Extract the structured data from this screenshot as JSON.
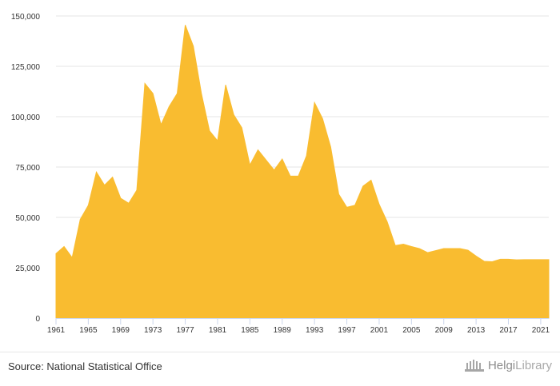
{
  "chart_data": {
    "type": "area",
    "title": "",
    "xlabel": "",
    "ylabel": "",
    "color": "#f9bc30",
    "grid": true,
    "ylim": [
      0,
      150000
    ],
    "yticks": [
      0,
      25000,
      50000,
      75000,
      100000,
      125000,
      150000
    ],
    "ytick_labels": [
      "0",
      "25,000",
      "50,000",
      "75,000",
      "100,000",
      "125,000",
      "150,000"
    ],
    "xtick_labels": [
      "1961",
      "1965",
      "1969",
      "1973",
      "1977",
      "1981",
      "1985",
      "1989",
      "1993",
      "1997",
      "2001",
      "2005",
      "2009",
      "2013",
      "2017",
      "2021"
    ],
    "x": [
      1961,
      1962,
      1963,
      1964,
      1965,
      1966,
      1967,
      1968,
      1969,
      1970,
      1971,
      1972,
      1973,
      1974,
      1975,
      1976,
      1977,
      1978,
      1979,
      1980,
      1981,
      1982,
      1983,
      1984,
      1985,
      1986,
      1987,
      1988,
      1989,
      1990,
      1991,
      1992,
      1993,
      1994,
      1995,
      1996,
      1997,
      1998,
      1999,
      2000,
      2001,
      2002,
      2003,
      2004,
      2005,
      2006,
      2007,
      2008,
      2009,
      2010,
      2011,
      2012,
      2013,
      2014,
      2015,
      2016,
      2017,
      2018,
      2019,
      2020,
      2021,
      2022
    ],
    "values": [
      32000,
      35500,
      30000,
      49000,
      56000,
      72500,
      66000,
      70000,
      59500,
      57000,
      63500,
      116500,
      111500,
      96000,
      105000,
      111500,
      145500,
      135000,
      111500,
      93000,
      88000,
      115800,
      101000,
      94500,
      76000,
      83500,
      78500,
      73500,
      79000,
      70500,
      70500,
      80500,
      107000,
      99000,
      85000,
      61500,
      55000,
      56000,
      65500,
      68500,
      56500,
      47800,
      36000,
      36700,
      35500,
      34500,
      32500,
      33500,
      34500,
      34500,
      34500,
      33700,
      30800,
      28200,
      28000,
      29200,
      29200,
      28900,
      29000,
      29000,
      29000,
      29000
    ]
  },
  "footer": {
    "source": "Source: National Statistical Office",
    "brand_part1": "Helgi",
    "brand_part2": "Library"
  }
}
